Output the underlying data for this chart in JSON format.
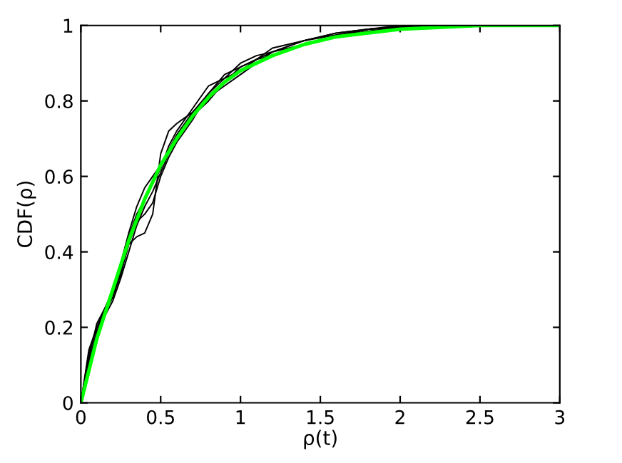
{
  "chart_data": {
    "type": "line",
    "xlabel": "ρ(t)",
    "ylabel": "CDF(ρ)",
    "xlim": [
      0,
      3
    ],
    "ylim": [
      0,
      1
    ],
    "xticks": [
      0,
      0.5,
      1,
      1.5,
      2,
      2.5,
      3
    ],
    "yticks": [
      0,
      0.2,
      0.4,
      0.6,
      0.8,
      1
    ],
    "line_style": "solid",
    "series": [
      {
        "color": "#000000",
        "x": [
          0,
          0.05,
          0.1,
          0.15,
          0.2,
          0.25,
          0.3,
          0.35,
          0.4,
          0.45,
          0.5,
          0.55,
          0.6,
          0.7,
          0.8,
          0.9,
          1.0,
          1.1,
          1.2,
          1.4,
          1.6,
          1.8,
          2.0,
          2.2,
          2.5
        ],
        "values": [
          0,
          0.14,
          0.2,
          0.24,
          0.28,
          0.34,
          0.42,
          0.44,
          0.45,
          0.5,
          0.66,
          0.72,
          0.74,
          0.77,
          0.82,
          0.87,
          0.89,
          0.91,
          0.93,
          0.96,
          0.98,
          0.99,
          0.995,
          1.0,
          1.0
        ]
      },
      {
        "color": "#000000",
        "x": [
          0,
          0.05,
          0.1,
          0.15,
          0.2,
          0.25,
          0.3,
          0.35,
          0.4,
          0.45,
          0.5,
          0.55,
          0.6,
          0.7,
          0.8,
          0.9,
          1.0,
          1.1,
          1.2,
          1.4,
          1.6,
          1.8,
          2.0,
          2.3
        ],
        "values": [
          0,
          0.12,
          0.21,
          0.25,
          0.29,
          0.36,
          0.44,
          0.5,
          0.54,
          0.58,
          0.62,
          0.68,
          0.72,
          0.78,
          0.84,
          0.86,
          0.88,
          0.91,
          0.94,
          0.96,
          0.98,
          0.99,
          1.0,
          1.0
        ]
      },
      {
        "color": "#000000",
        "x": [
          0,
          0.05,
          0.1,
          0.15,
          0.2,
          0.25,
          0.3,
          0.35,
          0.4,
          0.45,
          0.5,
          0.55,
          0.6,
          0.7,
          0.8,
          0.9,
          1.0,
          1.1,
          1.2,
          1.4,
          1.6,
          1.8,
          2.0,
          2.2,
          2.7
        ],
        "values": [
          0,
          0.1,
          0.18,
          0.23,
          0.27,
          0.33,
          0.4,
          0.47,
          0.52,
          0.56,
          0.61,
          0.66,
          0.7,
          0.76,
          0.8,
          0.85,
          0.89,
          0.91,
          0.92,
          0.95,
          0.97,
          0.985,
          0.995,
          1.0,
          1.0
        ]
      },
      {
        "color": "#000000",
        "x": [
          0,
          0.05,
          0.1,
          0.15,
          0.2,
          0.25,
          0.3,
          0.35,
          0.4,
          0.45,
          0.5,
          0.55,
          0.6,
          0.7,
          0.8,
          0.9,
          1.0,
          1.1,
          1.2,
          1.4,
          1.6,
          1.8,
          2.0,
          2.4
        ],
        "values": [
          0,
          0.13,
          0.2,
          0.25,
          0.3,
          0.37,
          0.45,
          0.52,
          0.57,
          0.6,
          0.63,
          0.67,
          0.71,
          0.77,
          0.81,
          0.84,
          0.87,
          0.9,
          0.93,
          0.96,
          0.975,
          0.99,
          0.995,
          1.0
        ]
      },
      {
        "color": "#000000",
        "x": [
          0,
          0.05,
          0.1,
          0.15,
          0.2,
          0.25,
          0.3,
          0.35,
          0.4,
          0.45,
          0.5,
          0.55,
          0.6,
          0.7,
          0.8,
          0.9,
          1.0,
          1.1,
          1.2,
          1.4,
          1.6,
          1.8,
          2.1
        ],
        "values": [
          0,
          0.11,
          0.19,
          0.24,
          0.28,
          0.35,
          0.42,
          0.48,
          0.5,
          0.53,
          0.6,
          0.65,
          0.69,
          0.75,
          0.82,
          0.86,
          0.9,
          0.92,
          0.93,
          0.95,
          0.97,
          0.99,
          1.0
        ]
      },
      {
        "color": "#00ff00",
        "x": [
          0,
          0.1,
          0.2,
          0.3,
          0.4,
          0.5,
          0.6,
          0.7,
          0.8,
          0.9,
          1.0,
          1.2,
          1.4,
          1.6,
          1.8,
          2.0,
          2.5,
          3
        ],
        "values": [
          0,
          0.17,
          0.3,
          0.43,
          0.54,
          0.63,
          0.7,
          0.76,
          0.81,
          0.85,
          0.88,
          0.92,
          0.95,
          0.97,
          0.98,
          0.99,
          1.0,
          1.0
        ]
      }
    ]
  }
}
